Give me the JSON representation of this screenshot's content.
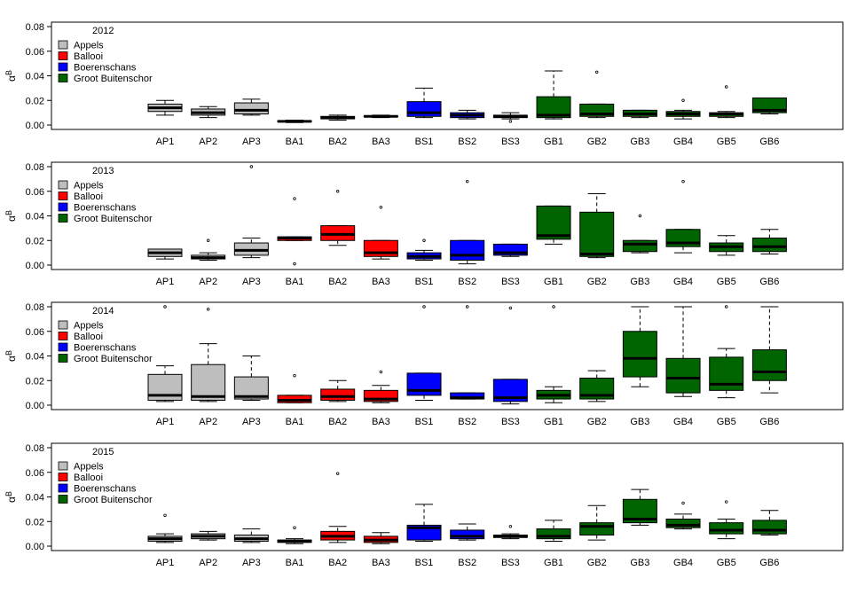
{
  "colors": {
    "Appels": "#bebebe",
    "Ballooi": "#ff0000",
    "Boerenschans": "#0000ff",
    "Groot Buitenschor": "#006400"
  },
  "chart_data": [
    {
      "type": "box",
      "title": "2012",
      "ylabel": "αB",
      "ylim": [
        0,
        0.085
      ],
      "yticks": [
        "0.00",
        "0.02",
        "0.04",
        "0.06",
        "0.08"
      ],
      "legend": [
        "Appels",
        "Ballooi",
        "Boerenschans",
        "Groot Buitenschor"
      ],
      "legend_position": "top-left",
      "boxes": [
        {
          "label": "AP1",
          "group": "Appels",
          "min": 0.008,
          "q1": 0.011,
          "median": 0.014,
          "q3": 0.017,
          "max": 0.02,
          "outliers": []
        },
        {
          "label": "AP2",
          "group": "Appels",
          "min": 0.006,
          "q1": 0.008,
          "median": 0.01,
          "q3": 0.013,
          "max": 0.015,
          "outliers": []
        },
        {
          "label": "AP3",
          "group": "Appels",
          "min": 0.008,
          "q1": 0.009,
          "median": 0.012,
          "q3": 0.018,
          "max": 0.021,
          "outliers": []
        },
        {
          "label": "BA1",
          "group": "Ballooi",
          "min": 0.002,
          "q1": 0.0025,
          "median": 0.003,
          "q3": 0.0035,
          "max": 0.004,
          "outliers": []
        },
        {
          "label": "BA2",
          "group": "Ballooi",
          "min": 0.004,
          "q1": 0.005,
          "median": 0.006,
          "q3": 0.007,
          "max": 0.008,
          "outliers": []
        },
        {
          "label": "BA3",
          "group": "Ballooi",
          "min": 0.006,
          "q1": 0.0065,
          "median": 0.007,
          "q3": 0.0075,
          "max": 0.008,
          "outliers": []
        },
        {
          "label": "BS1",
          "group": "Boerenschans",
          "min": 0.006,
          "q1": 0.007,
          "median": 0.01,
          "q3": 0.019,
          "max": 0.03,
          "outliers": []
        },
        {
          "label": "BS2",
          "group": "Boerenschans",
          "min": 0.005,
          "q1": 0.006,
          "median": 0.008,
          "q3": 0.01,
          "max": 0.012,
          "outliers": []
        },
        {
          "label": "BS3",
          "group": "Boerenschans",
          "min": 0.005,
          "q1": 0.006,
          "median": 0.007,
          "q3": 0.008,
          "max": 0.01,
          "outliers": [
            0.003
          ]
        },
        {
          "label": "GB1",
          "group": "Groot Buitenschor",
          "min": 0.005,
          "q1": 0.006,
          "median": 0.008,
          "q3": 0.023,
          "max": 0.044,
          "outliers": []
        },
        {
          "label": "GB2",
          "group": "Groot Buitenschor",
          "min": 0.006,
          "q1": 0.007,
          "median": 0.009,
          "q3": 0.017,
          "max": 0.017,
          "outliers": [
            0.043
          ]
        },
        {
          "label": "GB3",
          "group": "Groot Buitenschor",
          "min": 0.006,
          "q1": 0.007,
          "median": 0.009,
          "q3": 0.012,
          "max": 0.012,
          "outliers": []
        },
        {
          "label": "GB4",
          "group": "Groot Buitenschor",
          "min": 0.005,
          "q1": 0.007,
          "median": 0.009,
          "q3": 0.011,
          "max": 0.012,
          "outliers": [
            0.02
          ]
        },
        {
          "label": "GB5",
          "group": "Groot Buitenschor",
          "min": 0.006,
          "q1": 0.007,
          "median": 0.009,
          "q3": 0.01,
          "max": 0.011,
          "outliers": [
            0.031
          ]
        },
        {
          "label": "GB6",
          "group": "Groot Buitenschor",
          "min": 0.009,
          "q1": 0.01,
          "median": 0.012,
          "q3": 0.022,
          "max": 0.022,
          "outliers": []
        }
      ]
    },
    {
      "type": "box",
      "title": "2013",
      "ylabel": "αB",
      "ylim": [
        0,
        0.085
      ],
      "yticks": [
        "0.00",
        "0.02",
        "0.04",
        "0.06",
        "0.08"
      ],
      "legend": [
        "Appels",
        "Ballooi",
        "Boerenschans",
        "Groot Buitenschor"
      ],
      "legend_position": "top-left",
      "boxes": [
        {
          "label": "AP1",
          "group": "Appels",
          "min": 0.005,
          "q1": 0.007,
          "median": 0.01,
          "q3": 0.013,
          "max": 0.013,
          "outliers": []
        },
        {
          "label": "AP2",
          "group": "Appels",
          "min": 0.004,
          "q1": 0.005,
          "median": 0.006,
          "q3": 0.008,
          "max": 0.01,
          "outliers": [
            0.02
          ]
        },
        {
          "label": "AP3",
          "group": "Appels",
          "min": 0.006,
          "q1": 0.008,
          "median": 0.012,
          "q3": 0.018,
          "max": 0.022,
          "outliers": [
            0.08
          ]
        },
        {
          "label": "BA1",
          "group": "Ballooi",
          "min": 0.02,
          "q1": 0.02,
          "median": 0.022,
          "q3": 0.023,
          "max": 0.023,
          "outliers": [
            0.054,
            0.001
          ]
        },
        {
          "label": "BA2",
          "group": "Ballooi",
          "min": 0.016,
          "q1": 0.02,
          "median": 0.025,
          "q3": 0.032,
          "max": 0.032,
          "outliers": [
            0.06
          ]
        },
        {
          "label": "BA3",
          "group": "Ballooi",
          "min": 0.005,
          "q1": 0.007,
          "median": 0.01,
          "q3": 0.02,
          "max": 0.02,
          "outliers": [
            0.047
          ]
        },
        {
          "label": "BS1",
          "group": "Boerenschans",
          "min": 0.004,
          "q1": 0.005,
          "median": 0.007,
          "q3": 0.01,
          "max": 0.012,
          "outliers": [
            0.02
          ]
        },
        {
          "label": "BS2",
          "group": "Boerenschans",
          "min": 0.001,
          "q1": 0.004,
          "median": 0.008,
          "q3": 0.02,
          "max": 0.02,
          "outliers": [
            0.068
          ]
        },
        {
          "label": "BS3",
          "group": "Boerenschans",
          "min": 0.007,
          "q1": 0.008,
          "median": 0.01,
          "q3": 0.017,
          "max": 0.017,
          "outliers": []
        },
        {
          "label": "GB1",
          "group": "Groot Buitenschor",
          "min": 0.017,
          "q1": 0.021,
          "median": 0.024,
          "q3": 0.048,
          "max": 0.048,
          "outliers": []
        },
        {
          "label": "GB2",
          "group": "Groot Buitenschor",
          "min": 0.006,
          "q1": 0.007,
          "median": 0.009,
          "q3": 0.043,
          "max": 0.058,
          "outliers": []
        },
        {
          "label": "GB3",
          "group": "Groot Buitenschor",
          "min": 0.01,
          "q1": 0.011,
          "median": 0.017,
          "q3": 0.02,
          "max": 0.02,
          "outliers": [
            0.04
          ]
        },
        {
          "label": "GB4",
          "group": "Groot Buitenschor",
          "min": 0.01,
          "q1": 0.015,
          "median": 0.018,
          "q3": 0.029,
          "max": 0.029,
          "outliers": [
            0.068
          ]
        },
        {
          "label": "GB5",
          "group": "Groot Buitenschor",
          "min": 0.008,
          "q1": 0.011,
          "median": 0.015,
          "q3": 0.018,
          "max": 0.024,
          "outliers": []
        },
        {
          "label": "GB6",
          "group": "Groot Buitenschor",
          "min": 0.009,
          "q1": 0.011,
          "median": 0.015,
          "q3": 0.022,
          "max": 0.029,
          "outliers": []
        }
      ]
    },
    {
      "type": "box",
      "title": "2014",
      "ylabel": "αB",
      "ylim": [
        0,
        0.085
      ],
      "yticks": [
        "0.00",
        "0.02",
        "0.04",
        "0.06",
        "0.08"
      ],
      "legend": [
        "Appels",
        "Ballooi",
        "Boerenschans",
        "Groot Buitenschor"
      ],
      "legend_position": "top-left",
      "boxes": [
        {
          "label": "AP1",
          "group": "Appels",
          "min": 0.003,
          "q1": 0.004,
          "median": 0.008,
          "q3": 0.025,
          "max": 0.032,
          "outliers": [
            0.08
          ]
        },
        {
          "label": "AP2",
          "group": "Appels",
          "min": 0.003,
          "q1": 0.004,
          "median": 0.007,
          "q3": 0.033,
          "max": 0.05,
          "outliers": [
            0.078
          ]
        },
        {
          "label": "AP3",
          "group": "Appels",
          "min": 0.004,
          "q1": 0.005,
          "median": 0.007,
          "q3": 0.023,
          "max": 0.04,
          "outliers": []
        },
        {
          "label": "BA1",
          "group": "Ballooi",
          "min": 0.002,
          "q1": 0.002,
          "median": 0.004,
          "q3": 0.008,
          "max": 0.008,
          "outliers": [
            0.024
          ]
        },
        {
          "label": "BA2",
          "group": "Ballooi",
          "min": 0.003,
          "q1": 0.004,
          "median": 0.007,
          "q3": 0.013,
          "max": 0.02,
          "outliers": []
        },
        {
          "label": "BA3",
          "group": "Ballooi",
          "min": 0.002,
          "q1": 0.003,
          "median": 0.005,
          "q3": 0.012,
          "max": 0.016,
          "outliers": [
            0.027
          ]
        },
        {
          "label": "BS1",
          "group": "Boerenschans",
          "min": 0.004,
          "q1": 0.008,
          "median": 0.012,
          "q3": 0.026,
          "max": 0.026,
          "outliers": [
            0.08
          ]
        },
        {
          "label": "BS2",
          "group": "Boerenschans",
          "min": 0.005,
          "q1": 0.005,
          "median": 0.006,
          "q3": 0.01,
          "max": 0.01,
          "outliers": [
            0.08
          ]
        },
        {
          "label": "BS3",
          "group": "Boerenschans",
          "min": 0.001,
          "q1": 0.003,
          "median": 0.006,
          "q3": 0.021,
          "max": 0.021,
          "outliers": [
            0.079
          ]
        },
        {
          "label": "GB1",
          "group": "Groot Buitenschor",
          "min": 0.002,
          "q1": 0.005,
          "median": 0.008,
          "q3": 0.012,
          "max": 0.015,
          "outliers": [
            0.08
          ]
        },
        {
          "label": "GB2",
          "group": "Groot Buitenschor",
          "min": 0.003,
          "q1": 0.005,
          "median": 0.008,
          "q3": 0.022,
          "max": 0.028,
          "outliers": []
        },
        {
          "label": "GB3",
          "group": "Groot Buitenschor",
          "min": 0.015,
          "q1": 0.023,
          "median": 0.038,
          "q3": 0.06,
          "max": 0.08,
          "outliers": []
        },
        {
          "label": "GB4",
          "group": "Groot Buitenschor",
          "min": 0.007,
          "q1": 0.01,
          "median": 0.022,
          "q3": 0.038,
          "max": 0.08,
          "outliers": []
        },
        {
          "label": "GB5",
          "group": "Groot Buitenschor",
          "min": 0.006,
          "q1": 0.012,
          "median": 0.017,
          "q3": 0.039,
          "max": 0.046,
          "outliers": [
            0.08
          ]
        },
        {
          "label": "GB6",
          "group": "Groot Buitenschor",
          "min": 0.01,
          "q1": 0.02,
          "median": 0.027,
          "q3": 0.045,
          "max": 0.08,
          "outliers": []
        }
      ]
    },
    {
      "type": "box",
      "title": "2015",
      "ylabel": "αB",
      "ylim": [
        0,
        0.085
      ],
      "yticks": [
        "0.00",
        "0.02",
        "0.04",
        "0.06",
        "0.08"
      ],
      "legend": [
        "Appels",
        "Ballooi",
        "Boerenschans",
        "Groot Buitenschor"
      ],
      "legend_position": "top-left",
      "boxes": [
        {
          "label": "AP1",
          "group": "Appels",
          "min": 0.003,
          "q1": 0.004,
          "median": 0.006,
          "q3": 0.008,
          "max": 0.01,
          "outliers": [
            0.025
          ]
        },
        {
          "label": "AP2",
          "group": "Appels",
          "min": 0.005,
          "q1": 0.006,
          "median": 0.008,
          "q3": 0.01,
          "max": 0.012,
          "outliers": []
        },
        {
          "label": "AP3",
          "group": "Appels",
          "min": 0.003,
          "q1": 0.004,
          "median": 0.006,
          "q3": 0.009,
          "max": 0.014,
          "outliers": []
        },
        {
          "label": "BA1",
          "group": "Ballooi",
          "min": 0.002,
          "q1": 0.003,
          "median": 0.004,
          "q3": 0.005,
          "max": 0.006,
          "outliers": [
            0.015
          ]
        },
        {
          "label": "BA2",
          "group": "Ballooi",
          "min": 0.003,
          "q1": 0.005,
          "median": 0.008,
          "q3": 0.012,
          "max": 0.016,
          "outliers": [
            0.059
          ]
        },
        {
          "label": "BA3",
          "group": "Ballooi",
          "min": 0.002,
          "q1": 0.003,
          "median": 0.005,
          "q3": 0.008,
          "max": 0.011,
          "outliers": []
        },
        {
          "label": "BS1",
          "group": "Boerenschans",
          "min": 0.004,
          "q1": 0.005,
          "median": 0.015,
          "q3": 0.017,
          "max": 0.034,
          "outliers": []
        },
        {
          "label": "BS2",
          "group": "Boerenschans",
          "min": 0.005,
          "q1": 0.006,
          "median": 0.008,
          "q3": 0.013,
          "max": 0.018,
          "outliers": []
        },
        {
          "label": "BS3",
          "group": "Boerenschans",
          "min": 0.006,
          "q1": 0.007,
          "median": 0.008,
          "q3": 0.009,
          "max": 0.01,
          "outliers": [
            0.016
          ]
        },
        {
          "label": "GB1",
          "group": "Groot Buitenschor",
          "min": 0.004,
          "q1": 0.006,
          "median": 0.008,
          "q3": 0.014,
          "max": 0.021,
          "outliers": []
        },
        {
          "label": "GB2",
          "group": "Groot Buitenschor",
          "min": 0.005,
          "q1": 0.009,
          "median": 0.016,
          "q3": 0.019,
          "max": 0.033,
          "outliers": []
        },
        {
          "label": "GB3",
          "group": "Groot Buitenschor",
          "min": 0.017,
          "q1": 0.019,
          "median": 0.022,
          "q3": 0.038,
          "max": 0.046,
          "outliers": []
        },
        {
          "label": "GB4",
          "group": "Groot Buitenschor",
          "min": 0.014,
          "q1": 0.015,
          "median": 0.017,
          "q3": 0.022,
          "max": 0.026,
          "outliers": [
            0.035
          ]
        },
        {
          "label": "GB5",
          "group": "Groot Buitenschor",
          "min": 0.006,
          "q1": 0.01,
          "median": 0.013,
          "q3": 0.019,
          "max": 0.022,
          "outliers": [
            0.036
          ]
        },
        {
          "label": "GB6",
          "group": "Groot Buitenschor",
          "min": 0.009,
          "q1": 0.01,
          "median": 0.013,
          "q3": 0.021,
          "max": 0.029,
          "outliers": []
        }
      ]
    }
  ]
}
